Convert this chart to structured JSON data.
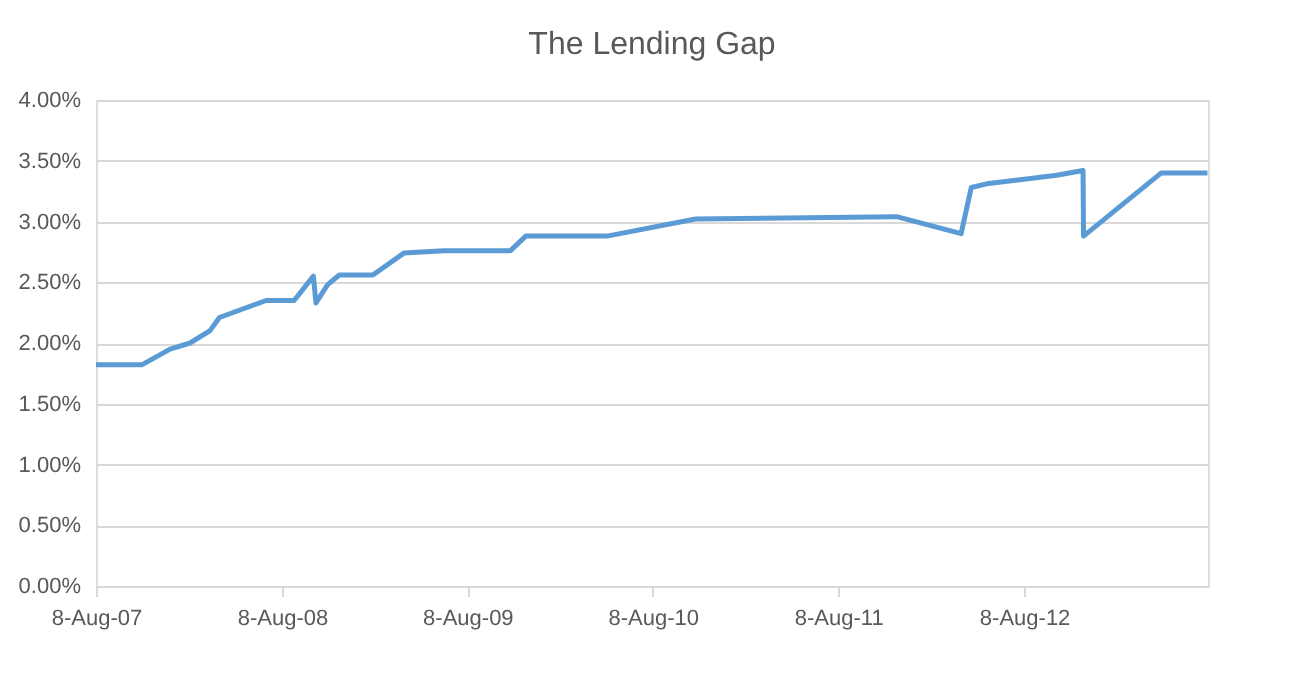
{
  "chart_data": {
    "type": "line",
    "title": "The Lending Gap",
    "x": [
      "2007-08-08",
      "2007-11-06",
      "2008-01-01",
      "2008-02-09",
      "2008-03-19",
      "2008-04-07",
      "2008-07-08",
      "2008-09-01",
      "2008-10-09",
      "2008-10-14",
      "2008-11-06",
      "2008-11-29",
      "2009-02-03",
      "2009-04-05",
      "2009-06-23",
      "2009-11-01",
      "2009-12-01",
      "2010-05-10",
      "2010-10-31",
      "2011-12-01",
      "2012-04-06",
      "2012-04-26",
      "2012-05-26",
      "2012-10-11",
      "2012-12-02",
      "2012-12-03",
      "2013-05-05",
      "2013-08-04"
    ],
    "series": [
      {
        "color": "#5b9bd5",
        "values": [
          1.82,
          1.82,
          1.95,
          2.0,
          2.1,
          2.21,
          2.35,
          2.35,
          2.55,
          2.33,
          2.48,
          2.56,
          2.56,
          2.74,
          2.76,
          2.76,
          2.88,
          2.88,
          3.02,
          3.04,
          2.9,
          3.28,
          3.31,
          3.38,
          3.42,
          2.88,
          3.4,
          3.4
        ]
      }
    ],
    "xlim": [
      "2007-08-08",
      "2013-08-05"
    ],
    "xticks": [
      {
        "value": "2007-08-08",
        "label": "8-Aug-07"
      },
      {
        "value": "2008-08-08",
        "label": "8-Aug-08"
      },
      {
        "value": "2009-08-08",
        "label": "8-Aug-09"
      },
      {
        "value": "2010-08-08",
        "label": "8-Aug-10"
      },
      {
        "value": "2011-08-08",
        "label": "8-Aug-11"
      },
      {
        "value": "2012-08-08",
        "label": "8-Aug-12"
      }
    ],
    "ylim": [
      0,
      4
    ],
    "yticks": [
      {
        "value": 0,
        "label": "0.00%"
      },
      {
        "value": 0.5,
        "label": "0.50%"
      },
      {
        "value": 1,
        "label": "1.00%"
      },
      {
        "value": 1.5,
        "label": "1.50%"
      },
      {
        "value": 2,
        "label": "2.00%"
      },
      {
        "value": 2.5,
        "label": "2.50%"
      },
      {
        "value": 3,
        "label": "3.00%"
      },
      {
        "value": 3.5,
        "label": "3.50%"
      },
      {
        "value": 4,
        "label": "4.00%"
      }
    ],
    "grid": "y",
    "marker": "none",
    "line_style": "solid"
  }
}
